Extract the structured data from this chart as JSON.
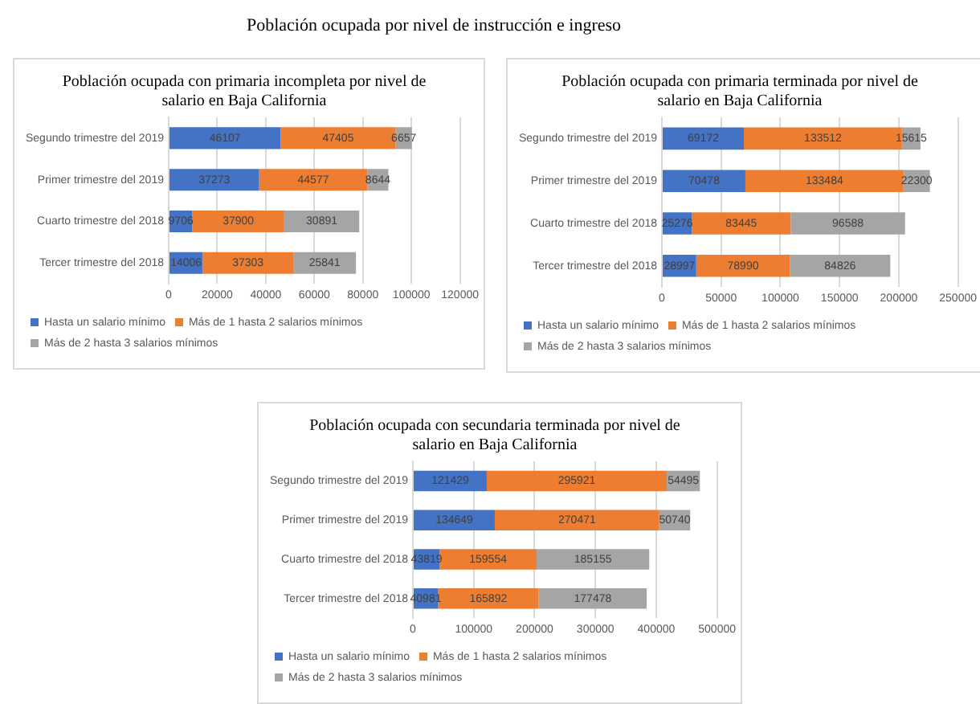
{
  "chart_data": [
    {
      "type": "bar",
      "orientation": "horizontal",
      "stacked": true,
      "title": "Población ocupada con primaria incompleta por nivel de salario en Baja California",
      "annotations": [
        "Población ocupada por nivel de instrucción e ingreso"
      ],
      "categories": [
        "Segundo trimestre del 2019",
        "Primer trimestre del 2019",
        "Cuarto trimestre del 2018",
        "Tercer trimestre del 2018"
      ],
      "series": [
        {
          "name": "Hasta un salario mínimo",
          "color": "#4472c4",
          "values": [
            46107,
            37273,
            9706,
            14006
          ]
        },
        {
          "name": "Más de 1 hasta 2 salarios mínimos",
          "color": "#ed7d31",
          "values": [
            47405,
            44577,
            37900,
            37303
          ]
        },
        {
          "name": "Más de 2 hasta 3 salarios mínimos",
          "color": "#a5a5a5",
          "values": [
            6657,
            8644,
            30891,
            25841
          ]
        }
      ],
      "xlim": [
        0,
        120000
      ],
      "xticks": [
        0,
        20000,
        40000,
        60000,
        80000,
        100000,
        120000
      ],
      "grid": "x",
      "legend": "bottom",
      "data_labels": true
    },
    {
      "type": "bar",
      "orientation": "horizontal",
      "stacked": true,
      "title": "Población ocupada con primaria terminada por nivel de salario en Baja California",
      "categories": [
        "Segundo trimestre del 2019",
        "Primer trimestre del 2019",
        "Cuarto trimestre del 2018",
        "Tercer trimestre del 2018"
      ],
      "series": [
        {
          "name": "Hasta un salario mínimo",
          "color": "#4472c4",
          "values": [
            69172,
            70478,
            25276,
            28997
          ]
        },
        {
          "name": "Más de 1 hasta 2 salarios mínimos",
          "color": "#ed7d31",
          "values": [
            133512,
            133484,
            83445,
            78990
          ]
        },
        {
          "name": "Más de 2 hasta 3 salarios mínimos",
          "color": "#a5a5a5",
          "values": [
            15615,
            22300,
            96588,
            84826
          ]
        }
      ],
      "xlim": [
        0,
        250000
      ],
      "xticks": [
        0,
        50000,
        100000,
        150000,
        200000,
        250000
      ],
      "grid": "x",
      "legend": "bottom",
      "data_labels": true
    },
    {
      "type": "bar",
      "orientation": "horizontal",
      "stacked": true,
      "title": "Población ocupada con secundaria terminada por nivel de salario en Baja California",
      "categories": [
        "Segundo trimestre del 2019",
        "Primer trimestre del 2019",
        "Cuarto trimestre del 2018",
        "Tercer trimestre del 2018"
      ],
      "series": [
        {
          "name": "Hasta un salario mínimo",
          "color": "#4472c4",
          "values": [
            121429,
            134649,
            43819,
            40981
          ]
        },
        {
          "name": "Más de 1 hasta 2 salarios mínimos",
          "color": "#ed7d31",
          "values": [
            295921,
            270471,
            159554,
            165892
          ]
        },
        {
          "name": "Más de 2 hasta 3 salarios mínimos",
          "color": "#a5a5a5",
          "values": [
            54495,
            50740,
            185155,
            177478
          ]
        }
      ],
      "xlim": [
        0,
        500000
      ],
      "xticks": [
        0,
        100000,
        200000,
        300000,
        400000,
        500000
      ],
      "grid": "x",
      "legend": "bottom",
      "data_labels": true
    }
  ]
}
